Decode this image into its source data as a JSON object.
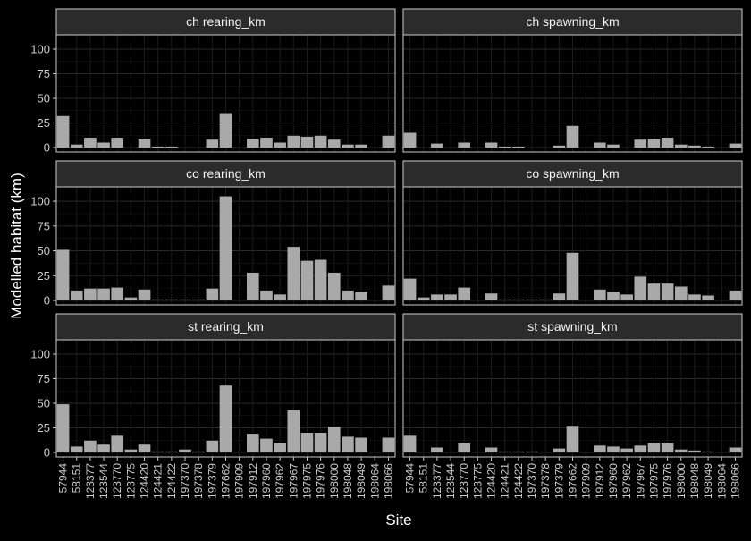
{
  "chart_data": {
    "type": "bar",
    "xlabel": "Site",
    "ylabel": "Modelled habitat (km)",
    "ylim": [
      0,
      110
    ],
    "yticks": [
      0,
      25,
      50,
      75,
      100
    ],
    "grid": true,
    "legend": "none",
    "colors": {
      "background": "#000000",
      "panel": "#000000",
      "grid": "#2a2a2a",
      "strip": "#2b2b2b",
      "border": "#cccccc",
      "bar": "#a9a9a9",
      "text": "#cccccc"
    },
    "categories": [
      "57944",
      "58151",
      "123377",
      "123544",
      "123770",
      "123775",
      "124420",
      "124421",
      "124422",
      "197370",
      "197378",
      "197379",
      "197662",
      "197909",
      "197912",
      "197960",
      "197962",
      "197967",
      "197975",
      "197976",
      "198000",
      "198048",
      "198049",
      "198064",
      "198066"
    ],
    "facets": [
      {
        "label": "ch rearing_km",
        "values": [
          32,
          3,
          10,
          5,
          10,
          0,
          9,
          1,
          1,
          0,
          0,
          8,
          35,
          0,
          9,
          10,
          5,
          12,
          11,
          12,
          8,
          3,
          3,
          0,
          12
        ]
      },
      {
        "label": "ch spawning_km",
        "values": [
          15,
          0,
          4,
          0,
          5,
          0,
          5,
          1,
          1,
          0,
          0,
          2,
          22,
          0,
          5,
          3,
          0,
          8,
          9,
          10,
          3,
          2,
          1,
          0,
          4
        ]
      },
      {
        "label": "co rearing_km",
        "values": [
          51,
          10,
          12,
          12,
          13,
          3,
          11,
          1,
          1,
          1,
          1,
          12,
          105,
          0,
          28,
          10,
          6,
          54,
          40,
          41,
          28,
          10,
          9,
          0,
          15
        ]
      },
      {
        "label": "co spawning_km",
        "values": [
          22,
          3,
          6,
          6,
          13,
          0,
          7,
          1,
          1,
          1,
          1,
          7,
          48,
          0,
          11,
          9,
          6,
          24,
          17,
          17,
          14,
          6,
          5,
          0,
          10
        ]
      },
      {
        "label": "st rearing_km",
        "values": [
          49,
          6,
          12,
          8,
          17,
          3,
          8,
          1,
          1,
          3,
          1,
          12,
          68,
          0,
          19,
          14,
          10,
          43,
          20,
          20,
          26,
          16,
          15,
          0,
          15
        ]
      },
      {
        "label": "st spawning_km",
        "values": [
          17,
          0,
          5,
          0,
          10,
          0,
          5,
          1,
          1,
          1,
          0,
          4,
          27,
          0,
          7,
          6,
          4,
          7,
          10,
          10,
          3,
          2,
          1,
          0,
          5
        ]
      }
    ]
  }
}
